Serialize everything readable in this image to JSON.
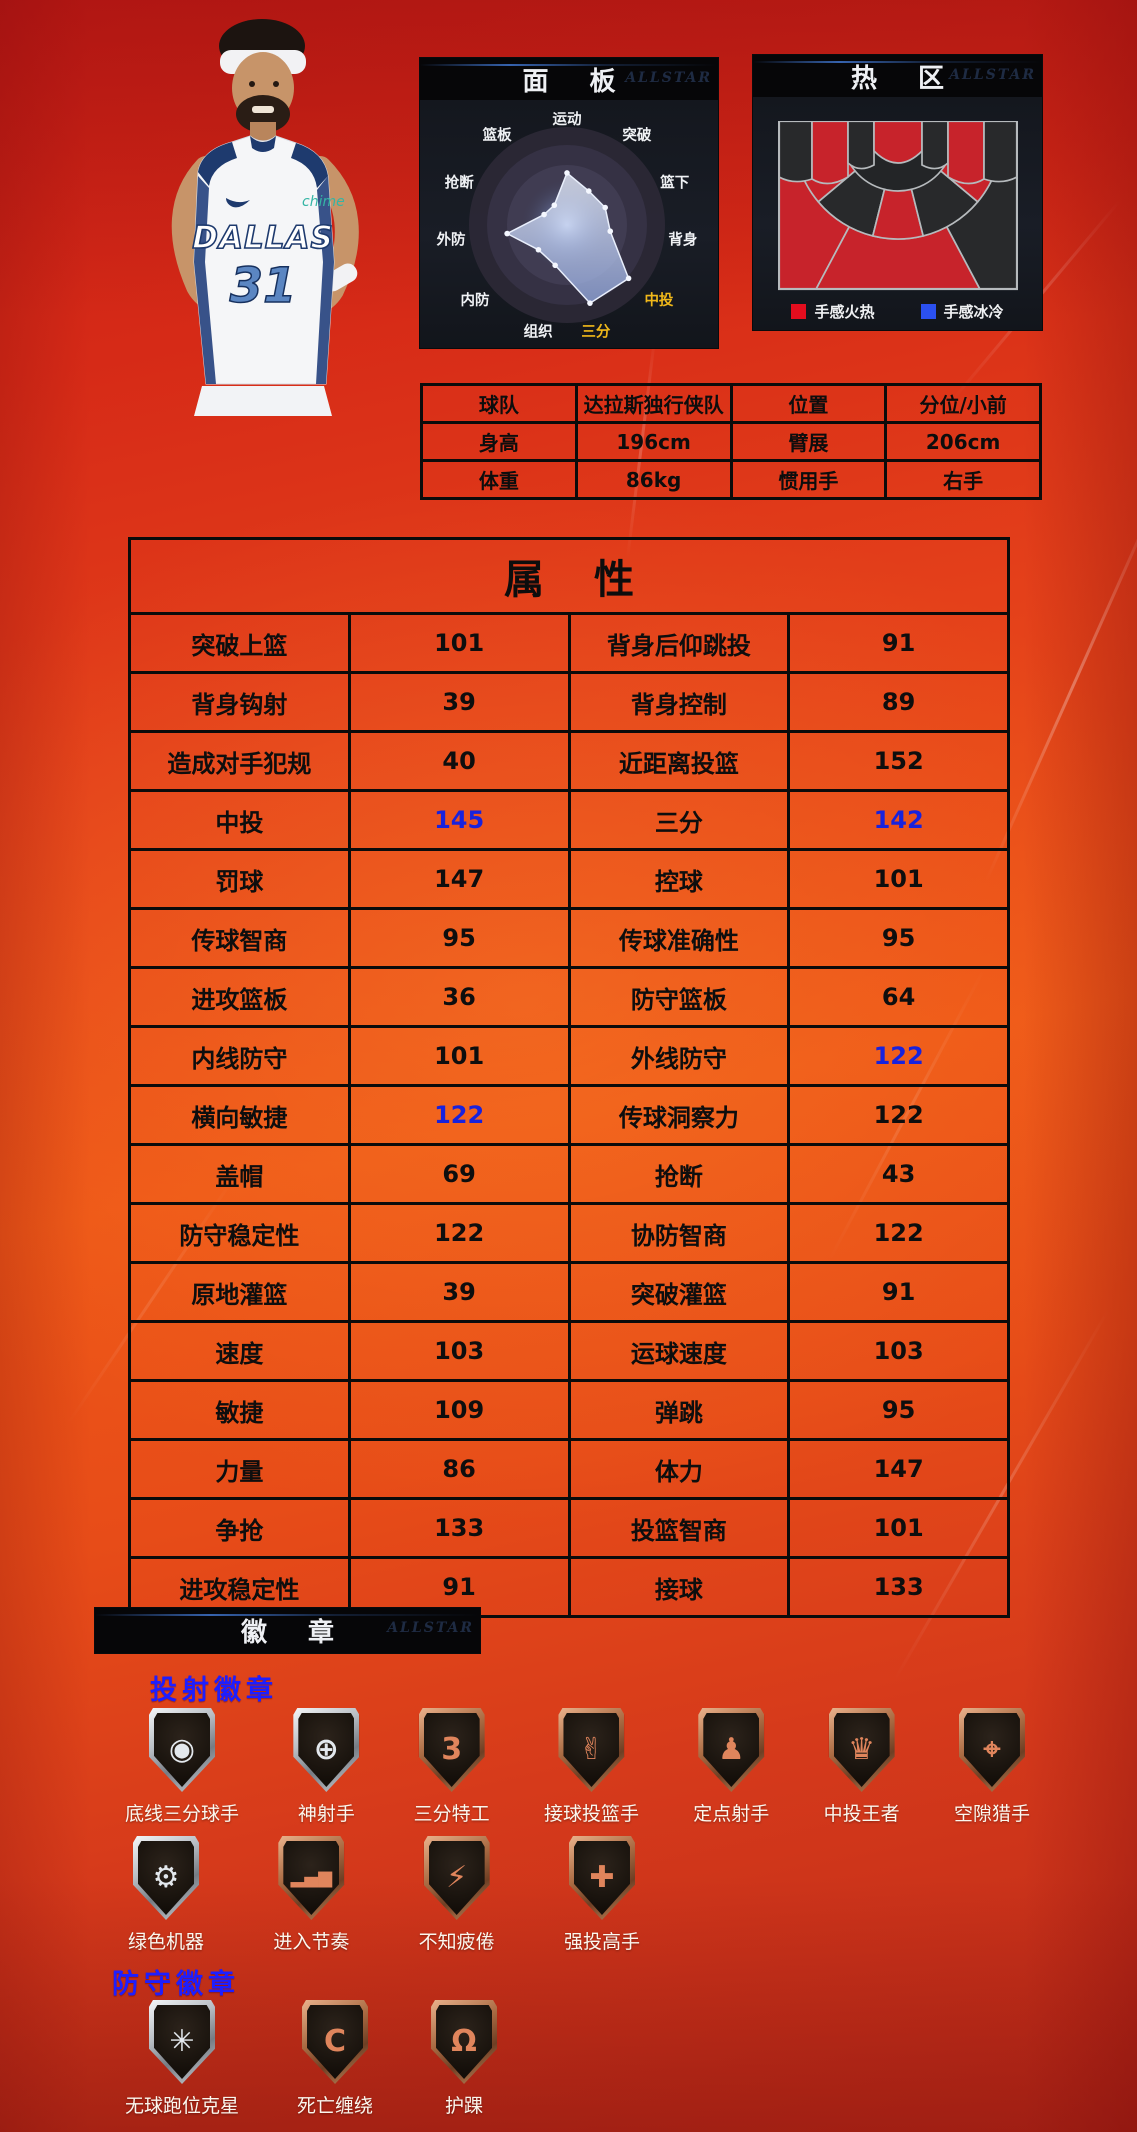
{
  "player": {
    "jersey_team": "DALLAS",
    "jersey_number": "31",
    "jersey_sponsor": "chime"
  },
  "panel": {
    "title": "面 板",
    "watermark": "ALLSTAR"
  },
  "hotzone": {
    "title": "热 区",
    "legend": [
      {
        "label": "手感火热",
        "color": "#e40d1e"
      },
      {
        "label": "手感冰冷",
        "color": "#2b50f0"
      }
    ]
  },
  "info": {
    "rows": [
      [
        "球队",
        "达拉斯独行侠队",
        "位置",
        "分位/小前"
      ],
      [
        "身高",
        "196cm",
        "臂展",
        "206cm"
      ],
      [
        "体重",
        "86kg",
        "惯用手",
        "右手"
      ]
    ]
  },
  "attributes": {
    "title": "属 性",
    "highlight_color": "#1822dd",
    "rows": [
      {
        "l1": "突破上篮",
        "v1": "101",
        "h1": false,
        "l2": "背身后仰跳投",
        "v2": "91",
        "h2": false
      },
      {
        "l1": "背身钩射",
        "v1": "39",
        "h1": false,
        "l2": "背身控制",
        "v2": "89",
        "h2": false
      },
      {
        "l1": "造成对手犯规",
        "v1": "40",
        "h1": false,
        "l2": "近距离投篮",
        "v2": "152",
        "h2": false
      },
      {
        "l1": "中投",
        "v1": "145",
        "h1": true,
        "l2": "三分",
        "v2": "142",
        "h2": true
      },
      {
        "l1": "罚球",
        "v1": "147",
        "h1": false,
        "l2": "控球",
        "v2": "101",
        "h2": false
      },
      {
        "l1": "传球智商",
        "v1": "95",
        "h1": false,
        "l2": "传球准确性",
        "v2": "95",
        "h2": false
      },
      {
        "l1": "进攻篮板",
        "v1": "36",
        "h1": false,
        "l2": "防守篮板",
        "v2": "64",
        "h2": false
      },
      {
        "l1": "内线防守",
        "v1": "101",
        "h1": false,
        "l2": "外线防守",
        "v2": "122",
        "h2": true
      },
      {
        "l1": "横向敏捷",
        "v1": "122",
        "h1": true,
        "l2": "传球洞察力",
        "v2": "122",
        "h2": false
      },
      {
        "l1": "盖帽",
        "v1": "69",
        "h1": false,
        "l2": "抢断",
        "v2": "43",
        "h2": false
      },
      {
        "l1": "防守稳定性",
        "v1": "122",
        "h1": false,
        "l2": "协防智商",
        "v2": "122",
        "h2": false
      },
      {
        "l1": "原地灌篮",
        "v1": "39",
        "h1": false,
        "l2": "突破灌篮",
        "v2": "91",
        "h2": false
      },
      {
        "l1": "速度",
        "v1": "103",
        "h1": false,
        "l2": "运球速度",
        "v2": "103",
        "h2": false
      },
      {
        "l1": "敏捷",
        "v1": "109",
        "h1": false,
        "l2": "弹跳",
        "v2": "95",
        "h2": false
      },
      {
        "l1": "力量",
        "v1": "86",
        "h1": false,
        "l2": "体力",
        "v2": "147",
        "h2": false
      },
      {
        "l1": "争抢",
        "v1": "133",
        "h1": false,
        "l2": "投篮智商",
        "v2": "101",
        "h2": false
      },
      {
        "l1": "进攻稳定性",
        "v1": "91",
        "h1": false,
        "l2": "接球",
        "v2": "133",
        "h2": false
      }
    ]
  },
  "badges": {
    "banner": "徽 章",
    "sections": [
      {
        "title": "投射徽章",
        "rows": [
          [
            {
              "label": "底线三分球手",
              "tier": "silver",
              "icon": "corner-three-basketball",
              "glyph": "◉"
            },
            {
              "label": "神射手",
              "tier": "silver",
              "icon": "deadeye-crosshair",
              "glyph": "⊕"
            },
            {
              "label": "三分特工",
              "tier": "bronze",
              "icon": "three-point-specialist",
              "glyph": "3"
            },
            {
              "label": "接球投篮手",
              "tier": "bronze",
              "icon": "catch-and-shoot-hand",
              "glyph": "✌"
            },
            {
              "label": "定点射手",
              "tier": "bronze",
              "icon": "spot-up-player",
              "glyph": "♟"
            },
            {
              "label": "中投王者",
              "tier": "bronze",
              "icon": "midrange-magician-hat",
              "glyph": "♛"
            },
            {
              "label": "空隙猎手",
              "tier": "bronze",
              "icon": "gap-hunter-pin",
              "glyph": "⌖"
            }
          ],
          [
            {
              "label": "绿色机器",
              "tier": "silver",
              "icon": "green-machine-robot",
              "glyph": "⚙"
            },
            {
              "label": "进入节奏",
              "tier": "bronze",
              "icon": "rhythm-signal-bars",
              "glyph": "▂▄▆"
            },
            {
              "label": "不知疲倦",
              "tier": "bronze",
              "icon": "tireless-energy-can",
              "glyph": "⚡"
            },
            {
              "label": "强投高手",
              "tier": "bronze",
              "icon": "contested-shot-player",
              "glyph": "✚"
            }
          ]
        ]
      },
      {
        "title": "防守徽章",
        "rows": [
          [
            {
              "label": "无球跑位克星",
              "tier": "silver",
              "icon": "off-ball-pest-mosquito",
              "glyph": "✳"
            },
            {
              "label": "死亡缠绕",
              "tier": "bronze",
              "icon": "clamps",
              "glyph": "C"
            },
            {
              "label": "护踝",
              "tier": "bronze",
              "icon": "ankle-braces",
              "glyph": "Ω"
            }
          ]
        ]
      }
    ]
  },
  "chart_data": [
    {
      "type": "radar",
      "title": "面 板",
      "axes": [
        "运动",
        "突破",
        "篮下",
        "背身",
        "中投",
        "三分",
        "组织",
        "内防",
        "外防",
        "抢断",
        "篮板"
      ],
      "values": [
        62,
        48,
        50,
        52,
        97,
        97,
        50,
        45,
        72,
        30,
        28
      ],
      "scale": [
        0,
        100
      ],
      "highlighted_axes": [
        "中投",
        "三分"
      ],
      "highlight_label_color": "#f0b81a",
      "polygon_fill": "#aebfe8",
      "layout": "11 axes clockwise from top"
    },
    {
      "type": "heatmap",
      "title": "热 区",
      "legend": [
        "手感火热",
        "手感冰冷"
      ],
      "hot_color": "#c7232b",
      "cold_color": "#28292b",
      "zones": [
        {
          "id": "left-corner-3",
          "status": "cold"
        },
        {
          "id": "left-baseline-mid",
          "status": "hot"
        },
        {
          "id": "left-paint-flank",
          "status": "cold"
        },
        {
          "id": "paint-center",
          "status": "hot"
        },
        {
          "id": "right-paint-flank",
          "status": "cold"
        },
        {
          "id": "right-baseline-mid",
          "status": "hot"
        },
        {
          "id": "right-corner-3",
          "status": "cold"
        },
        {
          "id": "mid-left-wing",
          "status": "hot"
        },
        {
          "id": "mid-left-center",
          "status": "cold"
        },
        {
          "id": "mid-center",
          "status": "hot"
        },
        {
          "id": "mid-right-center",
          "status": "cold"
        },
        {
          "id": "mid-right-wing",
          "status": "hot"
        },
        {
          "id": "deep-left",
          "status": "hot"
        },
        {
          "id": "deep-center",
          "status": "hot"
        },
        {
          "id": "deep-right",
          "status": "cold"
        }
      ]
    }
  ]
}
